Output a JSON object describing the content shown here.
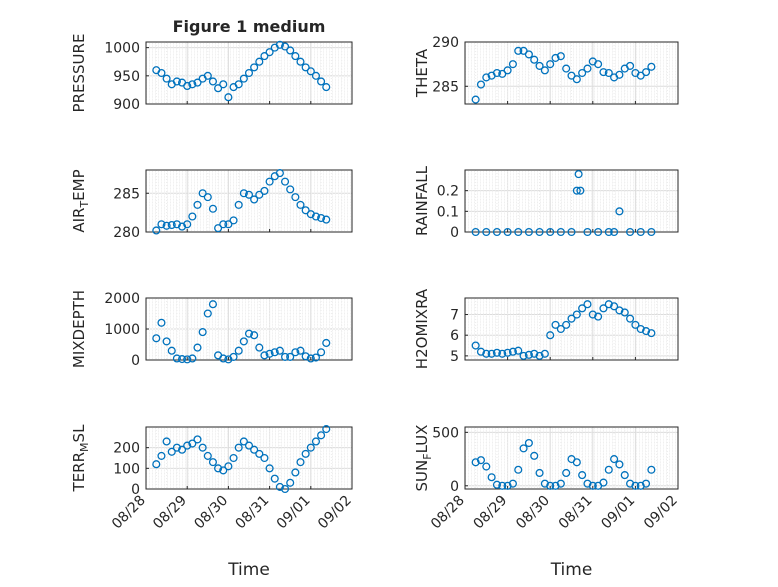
{
  "chart_data": [
    {
      "type": "scatter",
      "title": "Figure 1 medium",
      "ylabel": "PRESSURE",
      "ylim": [
        900,
        1010
      ],
      "yticks": [
        "900",
        "950",
        "1000"
      ],
      "x_range": [
        "08/28",
        "09/02"
      ],
      "grid": true,
      "series": [
        {
          "x": [
            "08/28 06:00",
            "08/28 09:00",
            "08/28 12:00",
            "08/28 15:00",
            "08/28 18:00",
            "08/28 21:00",
            "08/29 00:00",
            "08/29 03:00",
            "08/29 06:00",
            "08/29 09:00",
            "08/29 12:00",
            "08/29 15:00",
            "08/29 18:00",
            "08/29 21:00",
            "08/30 00:00",
            "08/30 03:00",
            "08/30 06:00",
            "08/30 09:00",
            "08/30 12:00",
            "08/30 15:00",
            "08/30 18:00",
            "08/30 21:00",
            "08/31 00:00",
            "08/31 03:00",
            "08/31 06:00",
            "08/31 09:00",
            "08/31 12:00",
            "08/31 15:00",
            "08/31 18:00",
            "08/31 21:00",
            "09/01 00:00",
            "09/01 03:00",
            "09/01 06:00",
            "09/01 09:00"
          ],
          "y": [
            960,
            955,
            945,
            935,
            940,
            938,
            932,
            935,
            938,
            945,
            950,
            940,
            928,
            935,
            912,
            930,
            935,
            945,
            955,
            965,
            975,
            985,
            992,
            1000,
            1005,
            1002,
            995,
            985,
            975,
            965,
            958,
            950,
            940,
            930
          ]
        }
      ]
    },
    {
      "type": "scatter",
      "title": "",
      "ylabel": "THETA",
      "ylim": [
        283,
        290
      ],
      "yticks": [
        "285",
        "290"
      ],
      "x_range": [
        "08/28",
        "09/02"
      ],
      "grid": true,
      "series": [
        {
          "x": [
            "08/28 06:00",
            "08/28 09:00",
            "08/28 12:00",
            "08/28 15:00",
            "08/28 18:00",
            "08/28 21:00",
            "08/29 00:00",
            "08/29 03:00",
            "08/29 06:00",
            "08/29 09:00",
            "08/29 12:00",
            "08/29 15:00",
            "08/29 18:00",
            "08/29 21:00",
            "08/30 00:00",
            "08/30 03:00",
            "08/30 06:00",
            "08/30 09:00",
            "08/30 12:00",
            "08/30 15:00",
            "08/30 18:00",
            "08/30 21:00",
            "08/31 00:00",
            "08/31 03:00",
            "08/31 06:00",
            "08/31 09:00",
            "08/31 12:00",
            "08/31 15:00",
            "08/31 18:00",
            "08/31 21:00",
            "09/01 00:00",
            "09/01 03:00",
            "09/01 06:00",
            "09/01 09:00"
          ],
          "y": [
            283.5,
            285.2,
            286.0,
            286.2,
            286.5,
            286.4,
            286.8,
            287.5,
            289.0,
            289.0,
            288.6,
            288.0,
            287.3,
            286.8,
            287.5,
            288.2,
            288.4,
            287.0,
            286.2,
            285.8,
            286.5,
            287.0,
            287.8,
            287.5,
            286.6,
            286.5,
            286.0,
            286.3,
            287.0,
            287.3,
            286.5,
            286.2,
            286.6,
            287.2
          ]
        }
      ]
    },
    {
      "type": "scatter",
      "title": "",
      "ylabel": "AIR_TEMP",
      "ylabel_main": "AIR",
      "ylabel_sub": "T",
      "ylabel_tail": "EMP",
      "ylim": [
        280,
        288
      ],
      "yticks": [
        "280",
        "285"
      ],
      "x_range": [
        "08/28",
        "09/02"
      ],
      "grid": true,
      "series": [
        {
          "x": [
            "08/28 06:00",
            "08/28 09:00",
            "08/28 12:00",
            "08/28 15:00",
            "08/28 18:00",
            "08/28 21:00",
            "08/29 00:00",
            "08/29 03:00",
            "08/29 06:00",
            "08/29 09:00",
            "08/29 12:00",
            "08/29 15:00",
            "08/29 18:00",
            "08/29 21:00",
            "08/30 00:00",
            "08/30 03:00",
            "08/30 06:00",
            "08/30 09:00",
            "08/30 12:00",
            "08/30 15:00",
            "08/30 18:00",
            "08/30 21:00",
            "08/31 00:00",
            "08/31 03:00",
            "08/31 06:00",
            "08/31 09:00",
            "08/31 12:00",
            "08/31 15:00",
            "08/31 18:00",
            "08/31 21:00",
            "09/01 00:00",
            "09/01 03:00",
            "09/01 06:00",
            "09/01 09:00"
          ],
          "y": [
            280.2,
            281.0,
            280.8,
            280.9,
            281.0,
            280.7,
            281.0,
            282.0,
            283.5,
            285.0,
            284.5,
            283.0,
            280.5,
            281.0,
            281.0,
            281.5,
            283.5,
            285.0,
            284.8,
            284.2,
            284.8,
            285.3,
            286.5,
            287.2,
            287.6,
            286.5,
            285.5,
            284.5,
            283.5,
            282.8,
            282.3,
            282.0,
            281.8,
            281.6
          ]
        }
      ]
    },
    {
      "type": "scatter",
      "title": "",
      "ylabel": "RAINFALL",
      "ylim": [
        0,
        0.3
      ],
      "yticks": [
        "0",
        "0.1",
        "0.2"
      ],
      "x_range": [
        "08/28",
        "09/02"
      ],
      "grid": true,
      "series": [
        {
          "x": [
            "08/28 06:00",
            "08/28 12:00",
            "08/28 18:00",
            "08/29 00:00",
            "08/29 06:00",
            "08/29 12:00",
            "08/29 18:00",
            "08/30 00:00",
            "08/30 06:00",
            "08/30 12:00",
            "08/30 15:00",
            "08/30 16:00",
            "08/30 17:00",
            "08/30 21:00",
            "08/31 03:00",
            "08/31 09:00",
            "08/31 12:00",
            "08/31 15:00",
            "08/31 21:00",
            "09/01 03:00",
            "09/01 09:00"
          ],
          "y": [
            0,
            0,
            0,
            0,
            0,
            0,
            0,
            0,
            0,
            0,
            0.2,
            0.28,
            0.2,
            0,
            0,
            0,
            0,
            0.1,
            0,
            0,
            0
          ]
        }
      ]
    },
    {
      "type": "scatter",
      "title": "",
      "ylabel": "MIXDEPTH",
      "ylim": [
        0,
        2000
      ],
      "yticks": [
        "0",
        "1000",
        "2000"
      ],
      "x_range": [
        "08/28",
        "09/02"
      ],
      "grid": true,
      "series": [
        {
          "x": [
            "08/28 06:00",
            "08/28 09:00",
            "08/28 12:00",
            "08/28 15:00",
            "08/28 18:00",
            "08/28 21:00",
            "08/29 00:00",
            "08/29 03:00",
            "08/29 06:00",
            "08/29 09:00",
            "08/29 12:00",
            "08/29 15:00",
            "08/29 18:00",
            "08/29 21:00",
            "08/30 00:00",
            "08/30 03:00",
            "08/30 06:00",
            "08/30 09:00",
            "08/30 12:00",
            "08/30 15:00",
            "08/30 18:00",
            "08/30 21:00",
            "08/31 00:00",
            "08/31 03:00",
            "08/31 06:00",
            "08/31 09:00",
            "08/31 12:00",
            "08/31 15:00",
            "08/31 18:00",
            "08/31 21:00",
            "09/01 00:00",
            "09/01 03:00",
            "09/01 06:00",
            "09/01 09:00"
          ],
          "y": [
            700,
            1200,
            600,
            300,
            50,
            30,
            20,
            50,
            400,
            900,
            1500,
            1800,
            150,
            50,
            20,
            100,
            300,
            600,
            850,
            800,
            400,
            150,
            200,
            250,
            300,
            100,
            100,
            250,
            300,
            120,
            50,
            80,
            250,
            550
          ]
        }
      ]
    },
    {
      "type": "scatter",
      "title": "",
      "ylabel": "H2OMIXRA",
      "ylim": [
        4.8,
        7.8
      ],
      "yticks": [
        "5",
        "6",
        "7"
      ],
      "x_range": [
        "08/28",
        "09/02"
      ],
      "grid": true,
      "series": [
        {
          "x": [
            "08/28 06:00",
            "08/28 09:00",
            "08/28 12:00",
            "08/28 15:00",
            "08/28 18:00",
            "08/28 21:00",
            "08/29 00:00",
            "08/29 03:00",
            "08/29 06:00",
            "08/29 09:00",
            "08/29 12:00",
            "08/29 15:00",
            "08/29 18:00",
            "08/29 21:00",
            "08/30 00:00",
            "08/30 03:00",
            "08/30 06:00",
            "08/30 09:00",
            "08/30 12:00",
            "08/30 15:00",
            "08/30 18:00",
            "08/30 21:00",
            "08/31 00:00",
            "08/31 03:00",
            "08/31 06:00",
            "08/31 09:00",
            "08/31 12:00",
            "08/31 15:00",
            "08/31 18:00",
            "08/31 21:00",
            "09/01 00:00",
            "09/01 03:00",
            "09/01 06:00",
            "09/01 09:00"
          ],
          "y": [
            5.5,
            5.2,
            5.1,
            5.1,
            5.15,
            5.1,
            5.15,
            5.2,
            5.25,
            5.0,
            5.05,
            5.1,
            5.0,
            5.1,
            6.0,
            6.5,
            6.3,
            6.5,
            6.8,
            7.0,
            7.3,
            7.5,
            7.0,
            6.9,
            7.3,
            7.5,
            7.4,
            7.2,
            7.1,
            6.8,
            6.5,
            6.3,
            6.2,
            6.1
          ]
        }
      ]
    },
    {
      "type": "scatter",
      "title": "",
      "ylabel": "TERR_MSL",
      "ylabel_main": "TERR",
      "ylabel_sub": "M",
      "ylabel_tail": "SL",
      "ylim": [
        0,
        300
      ],
      "yticks": [
        "0",
        "100",
        "200"
      ],
      "xticks": [
        "08/28",
        "08/29",
        "08/30",
        "08/31",
        "09/01",
        "09/02"
      ],
      "xlabel": "Time",
      "x_range": [
        "08/28",
        "09/02"
      ],
      "grid": true,
      "series": [
        {
          "x": [
            "08/28 06:00",
            "08/28 09:00",
            "08/28 12:00",
            "08/28 15:00",
            "08/28 18:00",
            "08/28 21:00",
            "08/29 00:00",
            "08/29 03:00",
            "08/29 06:00",
            "08/29 09:00",
            "08/29 12:00",
            "08/29 15:00",
            "08/29 18:00",
            "08/29 21:00",
            "08/30 00:00",
            "08/30 03:00",
            "08/30 06:00",
            "08/30 09:00",
            "08/30 12:00",
            "08/30 15:00",
            "08/30 18:00",
            "08/30 21:00",
            "08/31 00:00",
            "08/31 03:00",
            "08/31 06:00",
            "08/31 09:00",
            "08/31 12:00",
            "08/31 15:00",
            "08/31 18:00",
            "08/31 21:00",
            "09/01 00:00",
            "09/01 03:00",
            "09/01 06:00",
            "09/01 09:00"
          ],
          "y": [
            120,
            160,
            230,
            180,
            200,
            190,
            210,
            220,
            240,
            200,
            160,
            130,
            100,
            90,
            110,
            150,
            200,
            230,
            210,
            190,
            170,
            150,
            100,
            50,
            10,
            0,
            30,
            80,
            130,
            170,
            200,
            230,
            260,
            290
          ]
        }
      ]
    },
    {
      "type": "scatter",
      "title": "",
      "ylabel": "SUN_FLUX",
      "ylabel_main": "SUN",
      "ylabel_sub": "F",
      "ylabel_tail": "LUX",
      "ylim": [
        -30,
        550
      ],
      "yticks": [
        "0",
        "500"
      ],
      "xticks": [
        "08/28",
        "08/29",
        "08/30",
        "08/31",
        "09/01",
        "09/02"
      ],
      "xlabel": "Time",
      "x_range": [
        "08/28",
        "09/02"
      ],
      "grid": true,
      "series": [
        {
          "x": [
            "08/28 06:00",
            "08/28 09:00",
            "08/28 12:00",
            "08/28 15:00",
            "08/28 18:00",
            "08/28 21:00",
            "08/29 00:00",
            "08/29 03:00",
            "08/29 06:00",
            "08/29 09:00",
            "08/29 12:00",
            "08/29 15:00",
            "08/29 18:00",
            "08/29 21:00",
            "08/30 00:00",
            "08/30 03:00",
            "08/30 06:00",
            "08/30 09:00",
            "08/30 12:00",
            "08/30 15:00",
            "08/30 18:00",
            "08/30 21:00",
            "08/31 00:00",
            "08/31 03:00",
            "08/31 06:00",
            "08/31 09:00",
            "08/31 12:00",
            "08/31 15:00",
            "08/31 18:00",
            "08/31 21:00",
            "09/01 00:00",
            "09/01 03:00",
            "09/01 06:00",
            "09/01 09:00"
          ],
          "y": [
            220,
            240,
            180,
            80,
            10,
            0,
            0,
            20,
            150,
            350,
            400,
            280,
            120,
            20,
            0,
            0,
            20,
            120,
            250,
            220,
            100,
            20,
            0,
            0,
            30,
            150,
            250,
            200,
            100,
            20,
            0,
            0,
            20,
            150
          ]
        }
      ]
    }
  ]
}
